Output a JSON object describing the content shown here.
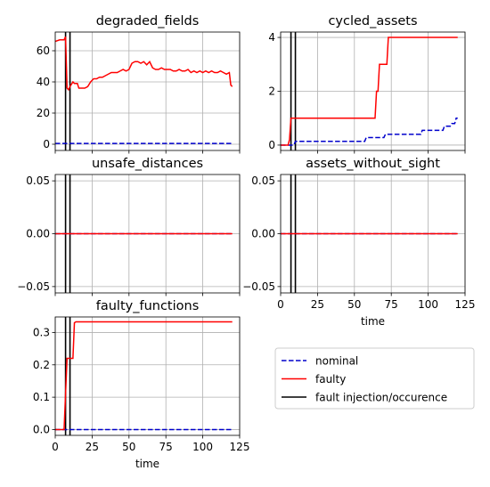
{
  "colors": {
    "nominal": "#0000cc",
    "faulty": "#ff0000",
    "fault_marker": "#000000",
    "grid": "#b0b0b0"
  },
  "legend": {
    "placement": "lower-right",
    "entries": [
      {
        "label": "nominal",
        "style": "dashed",
        "color": "#0000cc"
      },
      {
        "label": "faulty",
        "style": "solid",
        "color": "#ff0000"
      },
      {
        "label": "fault injection/occurence",
        "style": "solid",
        "color": "#000000"
      }
    ]
  },
  "chart_data": [
    {
      "type": "line",
      "title": "degraded_fields",
      "xlabel": "",
      "xlim": [
        0,
        125
      ],
      "ylim": [
        -4,
        72
      ],
      "xticks": [
        0,
        25,
        50,
        75,
        100,
        125
      ],
      "yticks": [
        0,
        20,
        40,
        60
      ],
      "show_xticklabels": false,
      "grid": true,
      "fault_lines": [
        7,
        10
      ],
      "series": [
        {
          "role": "nominal",
          "x": [
            0,
            120
          ],
          "y": [
            0.5,
            0.5
          ]
        },
        {
          "role": "faulty",
          "x": [
            0,
            3,
            6,
            7,
            8,
            9,
            10,
            12,
            13,
            15,
            16,
            18,
            20,
            22,
            24,
            26,
            28,
            30,
            32,
            34,
            36,
            38,
            40,
            42,
            44,
            46,
            48,
            50,
            52,
            54,
            56,
            58,
            60,
            62,
            64,
            66,
            68,
            70,
            72,
            74,
            76,
            78,
            80,
            82,
            84,
            86,
            88,
            90,
            92,
            94,
            96,
            98,
            100,
            102,
            104,
            106,
            108,
            110,
            112,
            114,
            116,
            118,
            119,
            120
          ],
          "y": [
            66,
            67,
            67,
            69,
            36,
            35,
            37,
            40,
            39,
            39,
            36,
            36,
            36,
            37,
            40,
            42,
            42,
            43,
            43,
            44,
            45,
            46,
            46,
            46,
            47,
            48,
            47,
            48,
            52,
            53,
            53,
            52,
            53,
            51,
            53,
            49,
            48,
            48,
            49,
            48,
            48,
            48,
            47,
            47,
            48,
            47,
            47,
            48,
            46,
            47,
            46,
            47,
            46,
            47,
            46,
            47,
            46,
            46,
            47,
            46,
            45,
            46,
            38,
            37
          ]
        }
      ]
    },
    {
      "type": "line",
      "title": "cycled_assets",
      "xlabel": "",
      "xlim": [
        0,
        125
      ],
      "ylim": [
        -0.2,
        4.2
      ],
      "xticks": [
        0,
        25,
        50,
        75,
        100,
        125
      ],
      "yticks": [
        0,
        2,
        4
      ],
      "show_xticklabels": false,
      "grid": true,
      "fault_lines": [
        7,
        10
      ],
      "series": [
        {
          "role": "nominal",
          "x": [
            0,
            9,
            10,
            57,
            58,
            70,
            71,
            86,
            87,
            95,
            96,
            110,
            111,
            115,
            116,
            118,
            119,
            120
          ],
          "y": [
            0,
            0,
            0.14,
            0.14,
            0.28,
            0.28,
            0.4,
            0.4,
            0.4,
            0.4,
            0.55,
            0.55,
            0.7,
            0.7,
            0.8,
            0.8,
            1.0,
            1.0
          ]
        },
        {
          "role": "faulty",
          "x": [
            0,
            5,
            6,
            7,
            64,
            65,
            66,
            67,
            72,
            73,
            120
          ],
          "y": [
            0,
            0,
            0.2,
            1,
            1,
            2,
            2,
            3,
            3,
            4,
            4
          ]
        }
      ]
    },
    {
      "type": "line",
      "title": "unsafe_distances",
      "xlabel": "",
      "xlim": [
        0,
        125
      ],
      "ylim": [
        -0.056,
        0.056
      ],
      "xticks": [
        0,
        25,
        50,
        75,
        100,
        125
      ],
      "yticks": [
        -0.05,
        0.0,
        0.05
      ],
      "ytick_labels": [
        "−0.05",
        "0.00",
        "0.05"
      ],
      "show_xticklabels": false,
      "grid": true,
      "fault_lines": [
        7,
        10
      ],
      "series": [
        {
          "role": "nominal",
          "x": [
            0,
            120
          ],
          "y": [
            0,
            0
          ]
        },
        {
          "role": "faulty",
          "x": [
            0,
            120
          ],
          "y": [
            0,
            0
          ]
        }
      ]
    },
    {
      "type": "line",
      "title": "assets_without_sight",
      "xlabel": "time",
      "xlim": [
        0,
        125
      ],
      "ylim": [
        -0.056,
        0.056
      ],
      "xticks": [
        0,
        25,
        50,
        75,
        100,
        125
      ],
      "yticks": [
        -0.05,
        0.0,
        0.05
      ],
      "ytick_labels": [
        "−0.05",
        "0.00",
        "0.05"
      ],
      "show_xticklabels": true,
      "grid": true,
      "fault_lines": [
        7,
        10
      ],
      "series": [
        {
          "role": "nominal",
          "x": [
            0,
            120
          ],
          "y": [
            0,
            0
          ]
        },
        {
          "role": "faulty",
          "x": [
            0,
            120
          ],
          "y": [
            0,
            0
          ]
        }
      ]
    },
    {
      "type": "line",
      "title": "faulty_functions",
      "xlabel": "time",
      "xlim": [
        0,
        125
      ],
      "ylim": [
        -0.018,
        0.348
      ],
      "xticks": [
        0,
        25,
        50,
        75,
        100,
        125
      ],
      "yticks": [
        0.0,
        0.1,
        0.2,
        0.3
      ],
      "ytick_labels": [
        "0.0",
        "0.1",
        "0.2",
        "0.3"
      ],
      "show_xticklabels": true,
      "grid": true,
      "fault_lines": [
        7,
        10
      ],
      "series": [
        {
          "role": "nominal",
          "x": [
            0,
            120
          ],
          "y": [
            0,
            0
          ]
        },
        {
          "role": "faulty",
          "x": [
            0,
            6,
            7,
            8,
            10,
            12,
            13,
            14,
            120
          ],
          "y": [
            0,
            0,
            0.11,
            0.22,
            0.22,
            0.22,
            0.33,
            0.333,
            0.333
          ]
        }
      ]
    }
  ]
}
